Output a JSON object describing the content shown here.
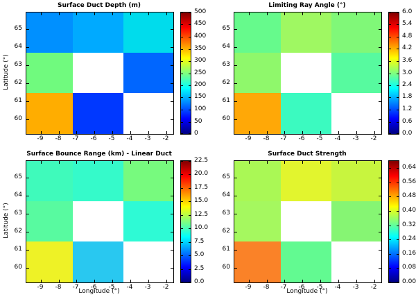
{
  "figure": {
    "background": "#ffffff",
    "colormap": "jet",
    "jet_stops": [
      "#000080",
      "#0000FF",
      "#00FFFF",
      "#FFFF00",
      "#FF0000",
      "#800000"
    ],
    "jet_stop_pcts": [
      0,
      12.5,
      37.5,
      62.5,
      87.5,
      100
    ]
  },
  "axes": {
    "x_range": [
      -9.8,
      -1.6
    ],
    "y_range": [
      59.2,
      65.9
    ],
    "x_ticks": [
      -9,
      -8,
      -7,
      -6,
      -5,
      -4,
      -3,
      -2
    ],
    "x_tick_labels": [
      "-9",
      "-8",
      "-7",
      "-6",
      "-5",
      "-4",
      "-3",
      "-2"
    ],
    "y_ticks": [
      60,
      61,
      62,
      63,
      64,
      65
    ],
    "y_tick_labels": [
      "60",
      "61",
      "62",
      "63",
      "64",
      "65"
    ]
  },
  "chart_data": [
    {
      "type": "heatmap",
      "title": "Surface Duct Depth (m)",
      "xlabel": "",
      "ylabel": "Latitude (°)",
      "x_bands": [
        [
          -9.8,
          -7.2
        ],
        [
          -7.2,
          -4.35
        ],
        [
          -4.35,
          -1.6
        ]
      ],
      "y_bands": [
        [
          63.6,
          65.9
        ],
        [
          61.5,
          63.6
        ],
        [
          59.2,
          61.5
        ]
      ],
      "values": [
        [
          130,
          145,
          170
        ],
        [
          250,
          null,
          110
        ],
        [
          350,
          90,
          null
        ]
      ],
      "colors": [
        [
          "#0090FF",
          "#00AAFF",
          "#00DCEC"
        ],
        [
          "#70FA7E",
          null,
          "#0066FF"
        ],
        [
          "#FFAD00",
          "#0038FF",
          null
        ]
      ],
      "colorbar": {
        "min": 0,
        "max": 500,
        "ticks": [
          0,
          50,
          100,
          150,
          200,
          250,
          300,
          350,
          400,
          450,
          500
        ],
        "tick_labels": [
          "0",
          "50",
          "100",
          "150",
          "200",
          "250",
          "300",
          "350",
          "400",
          "450",
          "500"
        ]
      }
    },
    {
      "type": "heatmap",
      "title": "Limiting Ray Angle (°)",
      "xlabel": "",
      "ylabel": "",
      "x_bands": [
        [
          -9.8,
          -7.2
        ],
        [
          -7.2,
          -4.35
        ],
        [
          -4.35,
          -1.6
        ]
      ],
      "y_bands": [
        [
          63.6,
          65.9
        ],
        [
          61.5,
          63.6
        ],
        [
          59.2,
          61.5
        ]
      ],
      "values": [
        [
          2.9,
          3.25,
          3.05
        ],
        [
          3.15,
          null,
          2.75
        ],
        [
          4.2,
          2.6,
          null
        ]
      ],
      "colors": [
        [
          "#66FA8C",
          "#9FF862",
          "#80F878"
        ],
        [
          "#8FF86B",
          null,
          "#57FA9F"
        ],
        [
          "#FFA807",
          "#3BFAC0",
          null
        ]
      ],
      "colorbar": {
        "min": 0,
        "max": 6,
        "ticks": [
          0,
          0.6,
          1.2,
          1.8,
          2.4,
          3.0,
          3.6,
          4.2,
          4.8,
          5.4,
          6.0
        ],
        "tick_labels": [
          "0.0",
          "0.6",
          "1.2",
          "1.8",
          "2.4",
          "3.0",
          "3.6",
          "4.2",
          "4.8",
          "5.4",
          "6.0"
        ]
      }
    },
    {
      "type": "heatmap",
      "title": "Surface Bounce Range (km) - Linear Duct",
      "xlabel": "Longitude (°)",
      "ylabel": "Latitude (°)",
      "x_bands": [
        [
          -9.8,
          -7.2
        ],
        [
          -7.2,
          -4.35
        ],
        [
          -4.35,
          -1.6
        ]
      ],
      "y_bands": [
        [
          63.6,
          65.9
        ],
        [
          61.5,
          63.6
        ],
        [
          59.2,
          61.5
        ]
      ],
      "values": [
        [
          9.9,
          9.6,
          11.1
        ],
        [
          10.4,
          null,
          9.3
        ],
        [
          13.8,
          7.2,
          null
        ]
      ],
      "colors": [
        [
          "#3FFABB",
          "#35FACA",
          "#77FA7E"
        ],
        [
          "#58FAA0",
          null,
          "#2EFAD5"
        ],
        [
          "#EEF226",
          "#29C8F0",
          null
        ]
      ],
      "colorbar": {
        "min": 0,
        "max": 22.5,
        "ticks": [
          0,
          2.5,
          5.0,
          7.5,
          10.0,
          12.5,
          15.0,
          17.5,
          20.0,
          22.5
        ],
        "tick_labels": [
          "0.0",
          "2.5",
          "5.0",
          "7.5",
          "10.0",
          "12.5",
          "15.0",
          "17.5",
          "20.0",
          "22.5"
        ]
      }
    },
    {
      "type": "heatmap",
      "title": "Surface Duct Strength",
      "xlabel": "Longitude (°)",
      "ylabel": "",
      "x_bands": [
        [
          -9.8,
          -7.2
        ],
        [
          -7.2,
          -4.35
        ],
        [
          -4.35,
          -1.6
        ]
      ],
      "y_bands": [
        [
          63.6,
          65.9
        ],
        [
          61.5,
          63.6
        ],
        [
          59.2,
          61.5
        ]
      ],
      "values": [
        [
          0.38,
          0.41,
          0.39
        ],
        [
          0.36,
          null,
          0.34
        ],
        [
          0.51,
          0.32,
          null
        ]
      ],
      "colors": [
        [
          "#AAF855",
          "#E2F52E",
          "#C8F53E"
        ],
        [
          "#A5F85F",
          null,
          "#86F573"
        ],
        [
          "#FA8228",
          "#62FA91",
          null
        ]
      ],
      "colorbar": {
        "min": 0,
        "max": 0.68,
        "ticks": [
          0,
          0.08,
          0.16,
          0.24,
          0.32,
          0.4,
          0.48,
          0.56,
          0.64
        ],
        "tick_labels": [
          "0.00",
          "0.08",
          "0.16",
          "0.24",
          "0.32",
          "0.40",
          "0.48",
          "0.56",
          "0.64"
        ]
      }
    }
  ]
}
